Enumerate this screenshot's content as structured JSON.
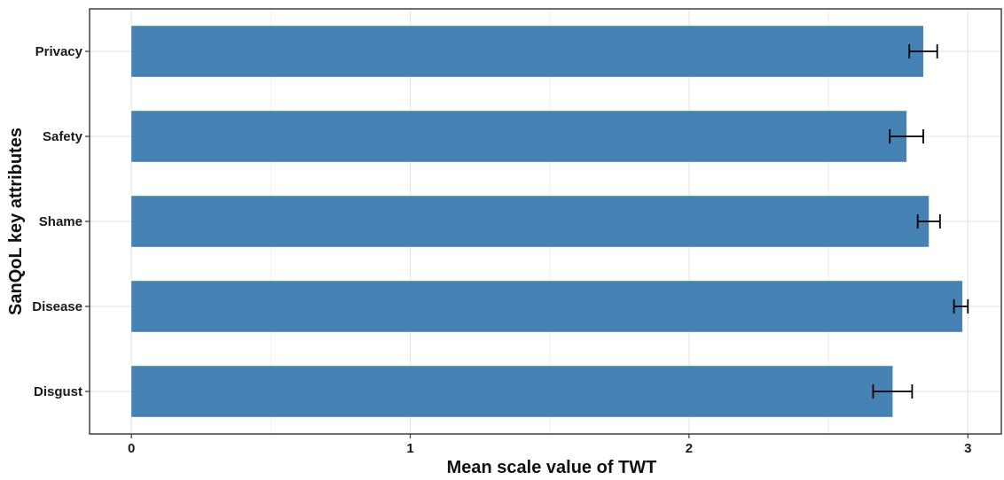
{
  "chart_data": {
    "type": "bar",
    "orientation": "horizontal",
    "categories": [
      "Privacy",
      "Safety",
      "Shame",
      "Disease",
      "Disgust"
    ],
    "values": [
      2.84,
      2.78,
      2.86,
      2.98,
      2.73
    ],
    "error_low": [
      2.79,
      2.72,
      2.82,
      2.95,
      2.66
    ],
    "error_high": [
      2.89,
      2.84,
      2.9,
      3.0,
      2.8
    ],
    "xlabel": "Mean scale value of TWT",
    "ylabel": "SanQoL key attributes",
    "xlim": [
      -0.15,
      3.12
    ],
    "xticks": [
      "0",
      "1",
      "2",
      "3"
    ],
    "grid": true,
    "bar_color": "#4682b4",
    "error_bar_color": "#000000",
    "grid_color": "#e6e6e6"
  }
}
